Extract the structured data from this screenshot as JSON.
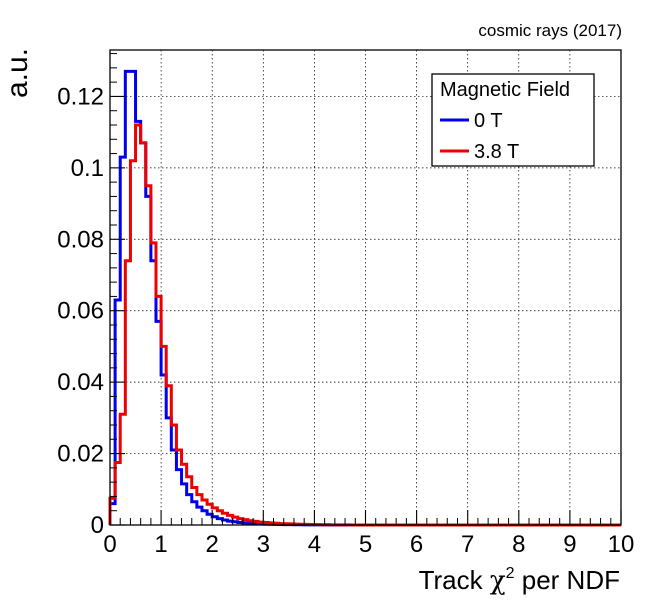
{
  "top_label": "cosmic rays (2017)",
  "chart_data": {
    "type": "histogram",
    "xlabel_prefix": "Track ",
    "xlabel_chi": "χ",
    "xlabel_sup": "2",
    "xlabel_suffix": " per NDF",
    "ylabel": "a.u.",
    "xlim": [
      0,
      10
    ],
    "ylim": [
      0,
      0.133
    ],
    "xticks": [
      "0",
      "1",
      "2",
      "3",
      "4",
      "5",
      "6",
      "7",
      "8",
      "9",
      "10"
    ],
    "yticks": [
      {
        "value": 0,
        "label": "0"
      },
      {
        "value": 0.02,
        "label": "0.02"
      },
      {
        "value": 0.04,
        "label": "0.04"
      },
      {
        "value": 0.06,
        "label": "0.06"
      },
      {
        "value": 0.08,
        "label": "0.08"
      },
      {
        "value": 0.1,
        "label": "0.1"
      },
      {
        "value": 0.12,
        "label": "0.12"
      }
    ],
    "grid": true,
    "bin_width": 0.1,
    "legend": {
      "title": "Magnetic Field",
      "placement": "top-right"
    },
    "series": [
      {
        "name": "0 T",
        "color": "#0000ee",
        "values": [
          0.006,
          0.063,
          0.103,
          0.127,
          0.127,
          0.113,
          0.107,
          0.092,
          0.074,
          0.057,
          0.042,
          0.03,
          0.021,
          0.0155,
          0.0115,
          0.0085,
          0.0065,
          0.005,
          0.004,
          0.003,
          0.0023,
          0.0018,
          0.0014,
          0.0011,
          0.0009,
          0.0007,
          0.0006,
          0.0005,
          0.0004,
          0.0003,
          0.00025,
          0.0002,
          0.00018,
          0.00015,
          0.00012,
          0.0001,
          8e-05,
          6e-05,
          5e-05,
          4e-05,
          3e-05,
          2e-05,
          2e-05,
          1e-05,
          1e-05
        ]
      },
      {
        "name": "3.8 T",
        "color": "#ee0000",
        "values": [
          0.0075,
          0.0175,
          0.031,
          0.074,
          0.102,
          0.112,
          0.107,
          0.095,
          0.079,
          0.064,
          0.05,
          0.039,
          0.028,
          0.021,
          0.017,
          0.0135,
          0.0105,
          0.0085,
          0.007,
          0.0058,
          0.0048,
          0.004,
          0.0033,
          0.0027,
          0.0022,
          0.0018,
          0.0015,
          0.0012,
          0.001,
          0.0008,
          0.0007,
          0.0006,
          0.0005,
          0.0004,
          0.00035,
          0.0003,
          0.00025,
          0.0002,
          0.00016,
          0.00013,
          0.0001,
          8e-05,
          6e-05,
          5e-05,
          4e-05,
          3e-05,
          2e-05,
          1e-05
        ]
      }
    ]
  }
}
